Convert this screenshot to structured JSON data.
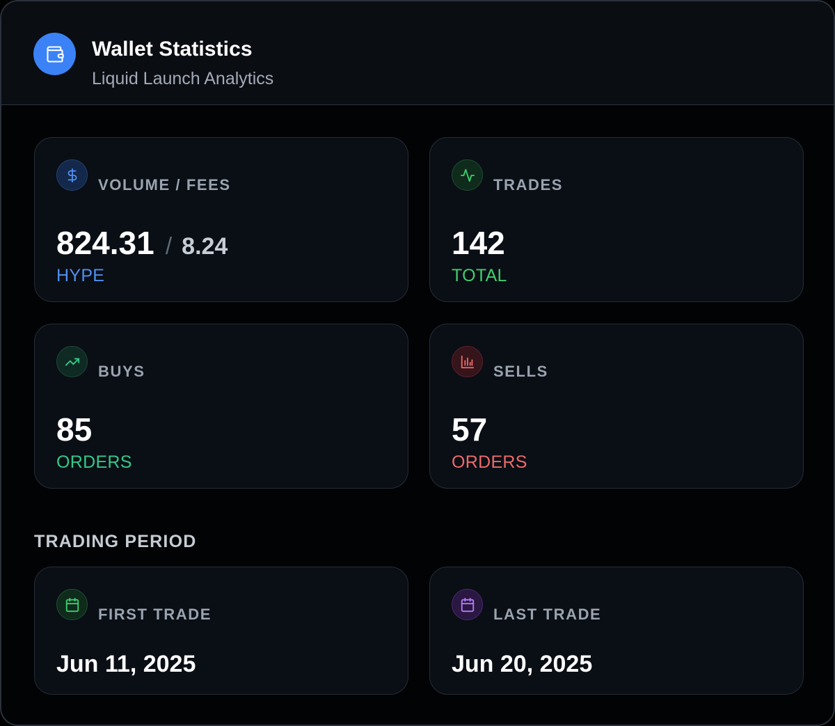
{
  "header": {
    "icon": "wallet-icon",
    "title": "Wallet Statistics",
    "subtitle": "Liquid Launch Analytics"
  },
  "stats": {
    "volume": {
      "icon": "dollar-icon",
      "label": "VOLUME / FEES",
      "value": "824.31",
      "separator": "/",
      "secondary": "8.24",
      "unit": "HYPE",
      "accent": "#4f8ff0"
    },
    "trades": {
      "icon": "activity-icon",
      "label": "TRADES",
      "value": "142",
      "unit": "TOTAL",
      "accent": "#3fcf6e"
    },
    "buys": {
      "icon": "trending-up-icon",
      "label": "BUYS",
      "value": "85",
      "unit": "ORDERS",
      "accent": "#34c98a"
    },
    "sells": {
      "icon": "bar-chart-icon",
      "label": "SELLS",
      "value": "57",
      "unit": "ORDERS",
      "accent": "#ee6a6a"
    }
  },
  "period": {
    "title": "TRADING PERIOD",
    "first": {
      "icon": "calendar-icon",
      "label": "FIRST TRADE",
      "date": "Jun 11, 2025",
      "accent": "#3fcf6e"
    },
    "last": {
      "icon": "calendar-icon",
      "label": "LAST TRADE",
      "date": "Jun 20, 2025",
      "accent": "#b57cf5"
    }
  }
}
